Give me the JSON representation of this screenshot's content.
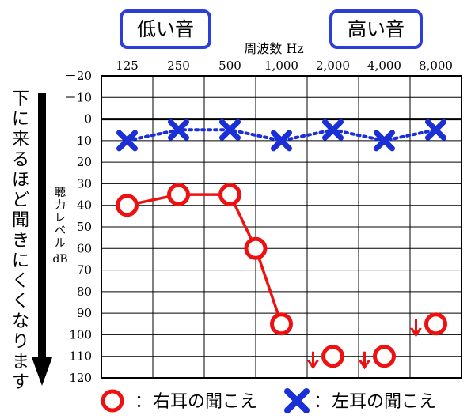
{
  "chart_data": {
    "type": "line",
    "frequency_header": "周波数 Hz",
    "low_label": "低い音",
    "high_label": "高い音",
    "x_categories": [
      "125",
      "250",
      "500",
      "1,000",
      "2,000",
      "4,000",
      "8,000"
    ],
    "y_ticks": [
      "－20",
      "－10",
      "0",
      "10",
      "20",
      "30",
      "40",
      "50",
      "60",
      "70",
      "80",
      "90",
      "100",
      "110",
      "120"
    ],
    "y_tick_values": [
      -20,
      -10,
      0,
      10,
      20,
      30,
      40,
      50,
      60,
      70,
      80,
      90,
      100,
      110,
      120
    ],
    "ylim": [
      -20,
      120
    ],
    "y_inverted": true,
    "grid": true,
    "ylabel": "聴力レベル dB",
    "side_note": "下に来るほど聞きにくくなります",
    "series": [
      {
        "name": "右耳の聞こえ",
        "marker": "circle",
        "color": "#ee1111",
        "line": "solid",
        "points": [
          {
            "x": "125",
            "y": 40
          },
          {
            "x": "250",
            "y": 35
          },
          {
            "x": "500",
            "y": 35
          },
          {
            "x": "750",
            "y": 60
          },
          {
            "x": "1,000",
            "y": 95
          },
          {
            "x": "2,000",
            "y": 110,
            "scale_out": true
          },
          {
            "x": "4,000",
            "y": 110,
            "scale_out": true
          },
          {
            "x": "8,000",
            "y": 95,
            "scale_out": true
          }
        ]
      },
      {
        "name": "左耳の聞こえ",
        "marker": "cross",
        "color": "#1a2fd6",
        "line": "dotted",
        "points": [
          {
            "x": "125",
            "y": 10
          },
          {
            "x": "250",
            "y": 5
          },
          {
            "x": "500",
            "y": 5
          },
          {
            "x": "1,000",
            "y": 10
          },
          {
            "x": "2,000",
            "y": 5
          },
          {
            "x": "4,000",
            "y": 10
          },
          {
            "x": "8,000",
            "y": 5
          }
        ]
      }
    ],
    "legend": {
      "placement": "bottom",
      "right_colon": "：",
      "right_label": "右耳の聞こえ",
      "left_colon": "：",
      "left_label": "左耳の聞こえ"
    }
  }
}
